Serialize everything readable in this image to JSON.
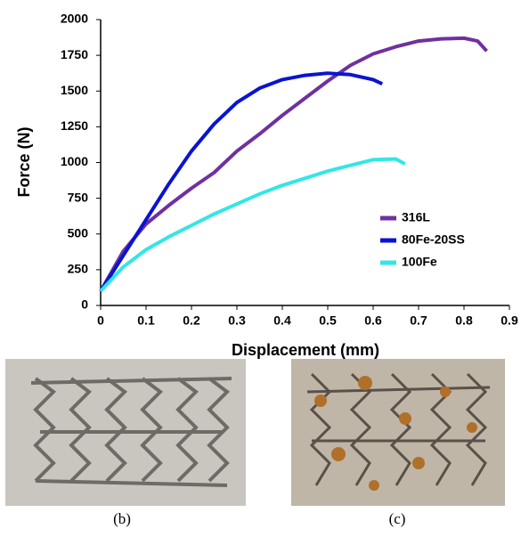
{
  "chart_data": {
    "type": "line",
    "xlabel": "Displacement (mm)",
    "ylabel": "Force (N)",
    "xlim": [
      0,
      0.9
    ],
    "xticks": [
      0,
      0.1,
      0.2,
      0.3,
      0.4,
      0.5,
      0.6,
      0.7,
      0.8,
      0.9
    ],
    "ylim": [
      0,
      2000
    ],
    "yticks": [
      0,
      250,
      500,
      750,
      1000,
      1250,
      1500,
      1750,
      2000
    ],
    "legend": "lower right",
    "series": [
      {
        "name": "316L",
        "color": "#7030a0",
        "x": [
          0,
          0.05,
          0.1,
          0.15,
          0.2,
          0.25,
          0.3,
          0.35,
          0.4,
          0.45,
          0.5,
          0.55,
          0.6,
          0.65,
          0.7,
          0.75,
          0.8,
          0.83,
          0.85
        ],
        "values": [
          100,
          380,
          570,
          700,
          820,
          930,
          1080,
          1200,
          1330,
          1450,
          1570,
          1680,
          1760,
          1810,
          1850,
          1865,
          1870,
          1850,
          1780
        ]
      },
      {
        "name": "80Fe-20SS",
        "color": "#0a14d0",
        "x": [
          0,
          0.05,
          0.1,
          0.15,
          0.2,
          0.25,
          0.3,
          0.35,
          0.4,
          0.45,
          0.5,
          0.55,
          0.6,
          0.62
        ],
        "values": [
          100,
          350,
          600,
          850,
          1080,
          1270,
          1420,
          1520,
          1580,
          1610,
          1625,
          1615,
          1580,
          1550
        ]
      },
      {
        "name": "100Fe",
        "color": "#33e6e6",
        "x": [
          0,
          0.05,
          0.1,
          0.15,
          0.2,
          0.25,
          0.3,
          0.35,
          0.4,
          0.45,
          0.5,
          0.55,
          0.6,
          0.65,
          0.67
        ],
        "values": [
          100,
          270,
          390,
          480,
          560,
          640,
          710,
          780,
          840,
          890,
          940,
          980,
          1020,
          1025,
          990
        ]
      }
    ]
  },
  "figure_captions": [
    "(b)",
    "(c)"
  ]
}
